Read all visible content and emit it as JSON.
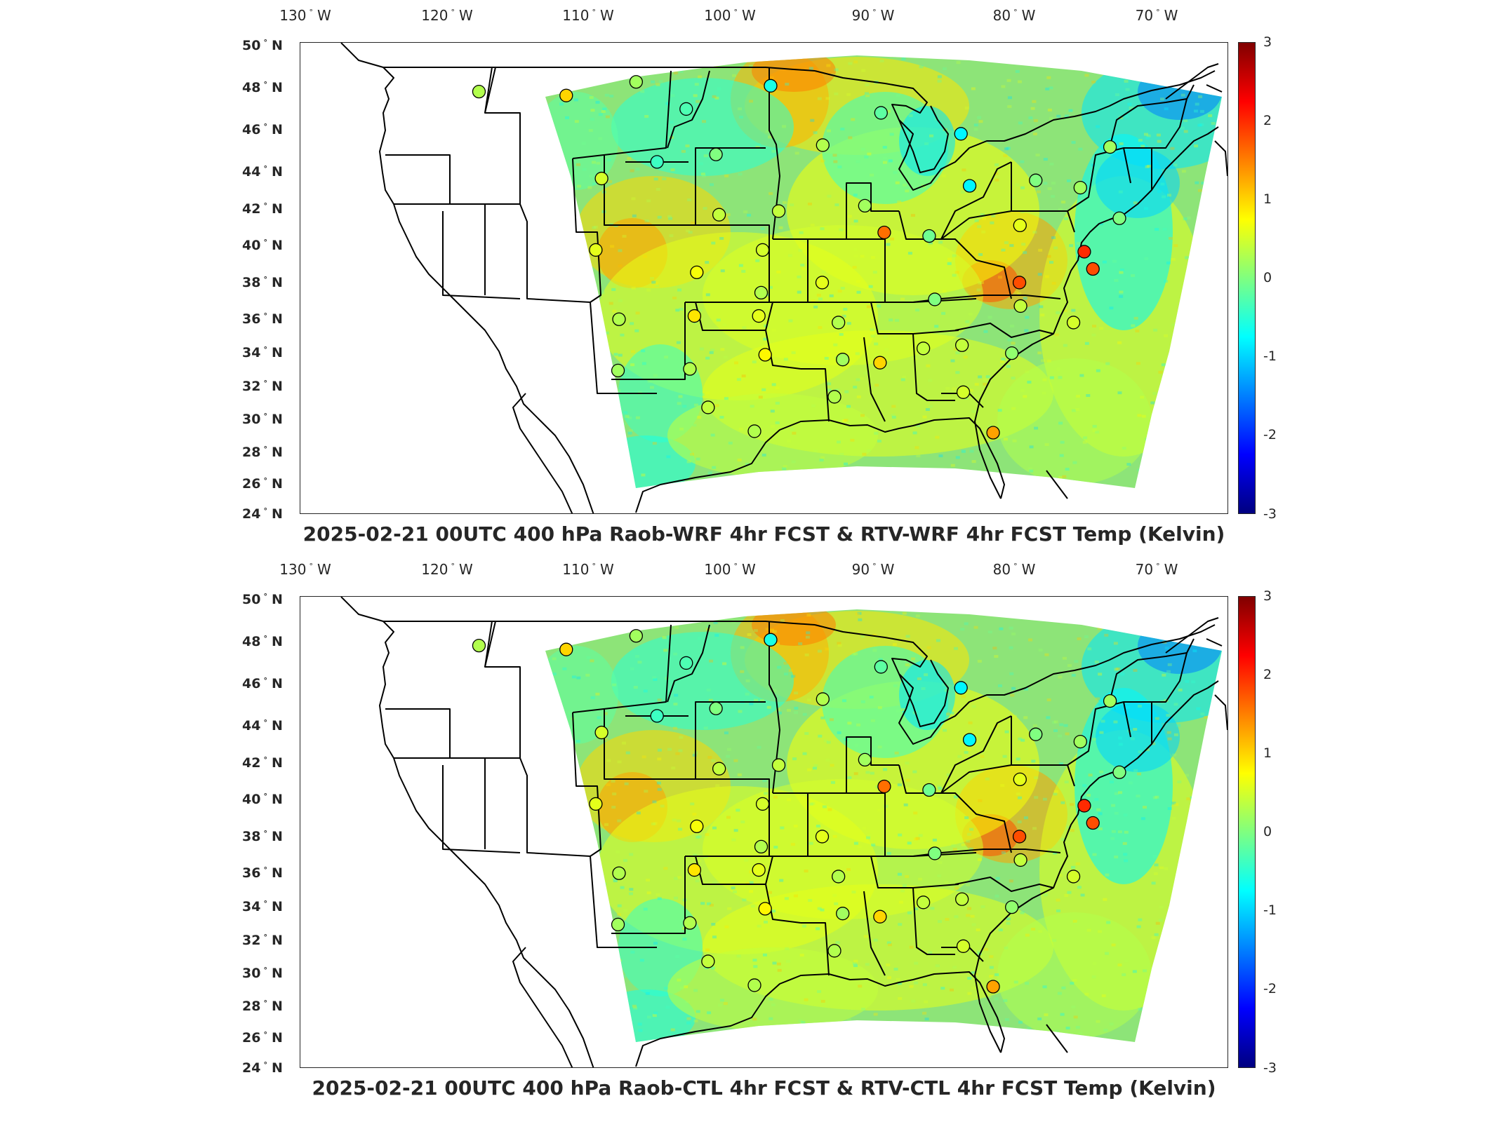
{
  "lon_labels": [
    "130",
    "120",
    "110",
    "100",
    "90",
    "80",
    "70"
  ],
  "lon_suffix": "W",
  "lat_labels": [
    "50",
    "48",
    "46",
    "44",
    "42",
    "40",
    "38",
    "36",
    "34",
    "32",
    "30",
    "28",
    "26",
    "24"
  ],
  "lat_suffix": "N",
  "colorbar_ticks": [
    "3",
    "2",
    "1",
    "0",
    "-1",
    "-2",
    "-3"
  ],
  "colorbar_range": [
    -3,
    3
  ],
  "colormap": "jet",
  "panels": [
    {
      "title": "2025-02-21 00UTC 400 hPa Raob-WRF 4hr FCST & RTV-WRF 4hr FCST Temp (Kelvin)"
    },
    {
      "title": "2025-02-21 00UTC 400 hPa Raob-CTL 4hr FCST & RTV-CTL 4hr FCST Temp (Kelvin)"
    }
  ],
  "map": {
    "projection": "Lambert conformal (CONUS)",
    "field_dominant_color": "#7fe27f",
    "colors": {
      "warm": "#f0a030",
      "cold": "#38c8ff",
      "neutral": "#9ee66a",
      "yellow": "#e8e84a",
      "boundary": "#000000"
    }
  },
  "raob_stations": [
    {
      "lon": -117.5,
      "lat": 47.7,
      "value": 0.3
    },
    {
      "lon": -111.4,
      "lat": 47.5,
      "value": 1.0
    },
    {
      "lon": -106.6,
      "lat": 48.2,
      "value": 0.2
    },
    {
      "lon": -103.0,
      "lat": 46.8,
      "value": -0.3
    },
    {
      "lon": -100.8,
      "lat": 44.4,
      "value": 0.0
    },
    {
      "lon": -97.2,
      "lat": 48.0,
      "value": -0.6
    },
    {
      "lon": -93.5,
      "lat": 44.9,
      "value": 0.3
    },
    {
      "lon": -89.5,
      "lat": 46.6,
      "value": -0.2
    },
    {
      "lon": -84.0,
      "lat": 45.5,
      "value": -0.8
    },
    {
      "lon": -83.5,
      "lat": 42.7,
      "value": -0.8
    },
    {
      "lon": -79.0,
      "lat": 43.0,
      "value": 0.0
    },
    {
      "lon": -73.8,
      "lat": 44.8,
      "value": 0.2
    },
    {
      "lon": -108.5,
      "lat": 43.1,
      "value": 0.5
    },
    {
      "lon": -104.8,
      "lat": 44.0,
      "value": -0.4
    },
    {
      "lon": -100.4,
      "lat": 41.1,
      "value": 0.4
    },
    {
      "lon": -96.4,
      "lat": 41.3,
      "value": 0.4
    },
    {
      "lon": -90.6,
      "lat": 41.6,
      "value": 0.2
    },
    {
      "lon": -89.3,
      "lat": 40.1,
      "value": 1.6
    },
    {
      "lon": -86.3,
      "lat": 39.9,
      "value": -0.1
    },
    {
      "lon": -80.2,
      "lat": 40.5,
      "value": 0.6
    },
    {
      "lon": -76.0,
      "lat": 42.6,
      "value": 0.2
    },
    {
      "lon": -73.5,
      "lat": 40.9,
      "value": 0.0
    },
    {
      "lon": -76.0,
      "lat": 39.0,
      "value": 2.0
    },
    {
      "lon": -75.5,
      "lat": 38.0,
      "value": 1.8
    },
    {
      "lon": -80.4,
      "lat": 37.2,
      "value": 1.8
    },
    {
      "lon": -80.4,
      "lat": 35.8,
      "value": 0.4
    },
    {
      "lon": -77.0,
      "lat": 34.8,
      "value": 0.5
    },
    {
      "lon": -108.5,
      "lat": 39.1,
      "value": 0.6
    },
    {
      "lon": -101.7,
      "lat": 37.8,
      "value": 0.7
    },
    {
      "lon": -97.4,
      "lat": 39.1,
      "value": 0.5
    },
    {
      "lon": -93.4,
      "lat": 37.2,
      "value": 0.6
    },
    {
      "lon": -97.4,
      "lat": 36.6,
      "value": 0.3
    },
    {
      "lon": -86.0,
      "lat": 36.2,
      "value": 0.0
    },
    {
      "lon": -106.6,
      "lat": 35.0,
      "value": 0.3
    },
    {
      "lon": -101.7,
      "lat": 35.2,
      "value": 0.9
    },
    {
      "lon": -97.5,
      "lat": 35.2,
      "value": 0.6
    },
    {
      "lon": -92.3,
      "lat": 34.8,
      "value": 0.3
    },
    {
      "lon": -86.8,
      "lat": 33.2,
      "value": 0.4
    },
    {
      "lon": -84.3,
      "lat": 33.4,
      "value": 0.4
    },
    {
      "lon": -81.1,
      "lat": 32.9,
      "value": 0.1
    },
    {
      "lon": -106.4,
      "lat": 31.8,
      "value": 0.2
    },
    {
      "lon": -101.8,
      "lat": 31.9,
      "value": 0.3
    },
    {
      "lon": -97.0,
      "lat": 32.8,
      "value": 0.8
    },
    {
      "lon": -92.0,
      "lat": 32.5,
      "value": 0.2
    },
    {
      "lon": -89.6,
      "lat": 32.3,
      "value": 1.0
    },
    {
      "lon": -92.5,
      "lat": 30.1,
      "value": 0.3
    },
    {
      "lon": -84.3,
      "lat": 30.4,
      "value": 0.5
    },
    {
      "lon": -100.5,
      "lat": 29.4,
      "value": 0.4
    },
    {
      "lon": -97.5,
      "lat": 27.8,
      "value": 0.3
    },
    {
      "lon": -82.5,
      "lat": 27.7,
      "value": 1.3
    }
  ]
}
